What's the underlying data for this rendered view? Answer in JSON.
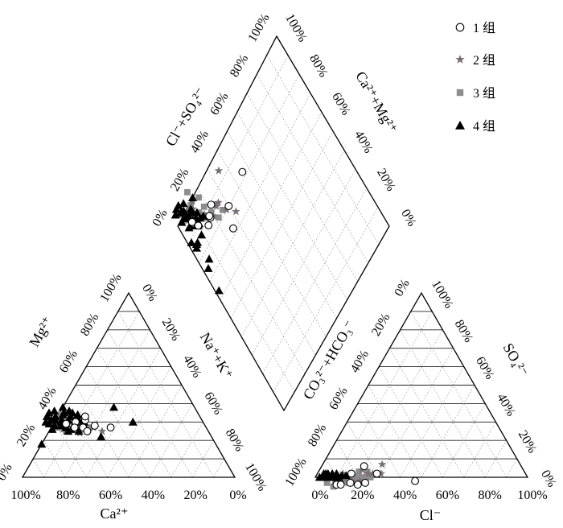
{
  "chart_data": {
    "type": "scatter",
    "title": "",
    "legend": {
      "placement": "top-right",
      "entries": [
        {
          "name": "1 组",
          "symbol": "open-circle",
          "color": "#000000"
        },
        {
          "name": "2 组",
          "symbol": "star",
          "color": "#7a6f78"
        },
        {
          "name": "3 组",
          "symbol": "square",
          "color": "#8c8c8c"
        },
        {
          "name": "4 组",
          "symbol": "triangle",
          "color": "#000000"
        }
      ]
    },
    "cation_triangle": {
      "labels": {
        "bottom": "Ca²⁺",
        "left": "Mg²⁺",
        "right": "Na⁺+K⁺"
      },
      "bottom_ticks": [
        "100%",
        "80%",
        "60%",
        "40%",
        "20%",
        "0%"
      ],
      "left_ticks": [
        "0%",
        "20%",
        "40%",
        "60%",
        "80%",
        "100%"
      ],
      "right_ticks": [
        "0%",
        "20%",
        "40%",
        "60%",
        "80%",
        "100%"
      ]
    },
    "anion_triangle": {
      "labels": {
        "bottom": "Cl⁻",
        "left": "CO₃²⁻+HCO₃⁻",
        "right": "SO₄²⁻"
      },
      "bottom_ticks": [
        "0%",
        "20%",
        "40%",
        "60%",
        "80%",
        "100%"
      ],
      "left_ticks": [
        "100%",
        "80%",
        "60%",
        "40%",
        "20%",
        "0%"
      ],
      "right_ticks": [
        "100%",
        "80%",
        "60%",
        "40%",
        "20%",
        "0%"
      ]
    },
    "diamond": {
      "labels": {
        "left": "Cl⁻+SO₄²⁻",
        "right": "Ca²⁺+Mg²⁺"
      },
      "left_ticks": [
        "0%",
        "20%",
        "40%",
        "60%",
        "80%",
        "100%"
      ],
      "right_ticks": [
        "100%",
        "80%",
        "60%",
        "40%",
        "20%",
        "0%"
      ]
    },
    "cation_points": {
      "g1": [
        [
          65,
          29
        ],
        [
          60,
          30
        ],
        [
          58,
          27
        ],
        [
          55,
          31
        ],
        [
          62,
          27
        ],
        [
          57,
          25
        ],
        [
          52,
          28
        ],
        [
          54,
          33
        ],
        [
          45,
          27
        ]
      ],
      "g2": [
        [
          70,
          29
        ],
        [
          66,
          31
        ],
        [
          63,
          27
        ],
        [
          61,
          24
        ],
        [
          58,
          28
        ],
        [
          56,
          30
        ],
        [
          53,
          27
        ],
        [
          50,
          25
        ],
        [
          68,
          26
        ],
        [
          72,
          27
        ],
        [
          64,
          33
        ]
      ],
      "g3": [
        [
          72,
          30
        ],
        [
          70,
          27
        ],
        [
          68,
          31
        ],
        [
          66,
          28
        ],
        [
          65,
          34
        ],
        [
          63,
          30
        ],
        [
          61,
          27
        ],
        [
          60,
          32
        ],
        [
          58,
          29
        ],
        [
          57,
          25
        ],
        [
          56,
          31
        ],
        [
          55,
          27
        ],
        [
          67,
          25
        ],
        [
          71,
          33
        ],
        [
          62,
          35
        ]
      ],
      "g4": [
        [
          74,
          30
        ],
        [
          73,
          26
        ],
        [
          72,
          33
        ],
        [
          71,
          28
        ],
        [
          70,
          35
        ],
        [
          69,
          31
        ],
        [
          68,
          28
        ],
        [
          67,
          36
        ],
        [
          66,
          31
        ],
        [
          66,
          27
        ],
        [
          65,
          29
        ],
        [
          64,
          34
        ],
        [
          63,
          31
        ],
        [
          62,
          28
        ],
        [
          61,
          33
        ],
        [
          60,
          30
        ],
        [
          59,
          35
        ],
        [
          58,
          31
        ],
        [
          57,
          28
        ],
        [
          56,
          30
        ],
        [
          73,
          29
        ],
        [
          71,
          31
        ],
        [
          68,
          33
        ],
        [
          67,
          30
        ],
        [
          66,
          25
        ],
        [
          64,
          26
        ],
        [
          63,
          35
        ],
        [
          61,
          25
        ],
        [
          62,
          38
        ],
        [
          59,
          27
        ],
        [
          60,
          36
        ],
        [
          57,
          34
        ],
        [
          82,
          18
        ],
        [
          38,
          38
        ],
        [
          33,
          30
        ],
        [
          52,
          22
        ]
      ]
    },
    "anion_points": {
      "g1": [
        [
          12,
          92
        ],
        [
          14,
          90
        ],
        [
          18,
          85
        ],
        [
          22,
          82
        ],
        [
          25,
          78
        ],
        [
          48,
          54
        ],
        [
          28,
          70
        ],
        [
          16,
          82
        ],
        [
          20,
          74
        ]
      ],
      "g2": [
        [
          10,
          92
        ],
        [
          14,
          88
        ],
        [
          18,
          84
        ],
        [
          22,
          80
        ],
        [
          20,
          76
        ],
        [
          24,
          74
        ],
        [
          26,
          72
        ],
        [
          30,
          68
        ],
        [
          28,
          65
        ],
        [
          12,
          86
        ]
      ],
      "g3": [
        [
          4,
          96
        ],
        [
          6,
          94
        ],
        [
          8,
          92
        ],
        [
          10,
          90
        ],
        [
          12,
          88
        ],
        [
          14,
          86
        ],
        [
          16,
          84
        ],
        [
          18,
          82
        ],
        [
          20,
          80
        ],
        [
          22,
          78
        ],
        [
          24,
          76
        ],
        [
          26,
          74
        ],
        [
          13,
          90
        ],
        [
          17,
          86
        ],
        [
          21,
          82
        ],
        [
          19,
          78
        ],
        [
          23,
          74
        ],
        [
          7,
          96
        ],
        [
          11,
          94
        ]
      ],
      "g4": [
        [
          2,
          98
        ],
        [
          3,
          97
        ],
        [
          4,
          96
        ],
        [
          5,
          95
        ],
        [
          6,
          94
        ],
        [
          7,
          93
        ],
        [
          8,
          92
        ],
        [
          9,
          91
        ],
        [
          10,
          90
        ],
        [
          11,
          89
        ],
        [
          3,
          95
        ],
        [
          5,
          93
        ],
        [
          7,
          91
        ],
        [
          9,
          89
        ],
        [
          12,
          87
        ],
        [
          14,
          85
        ],
        [
          4,
          94
        ]
      ]
    }
  }
}
